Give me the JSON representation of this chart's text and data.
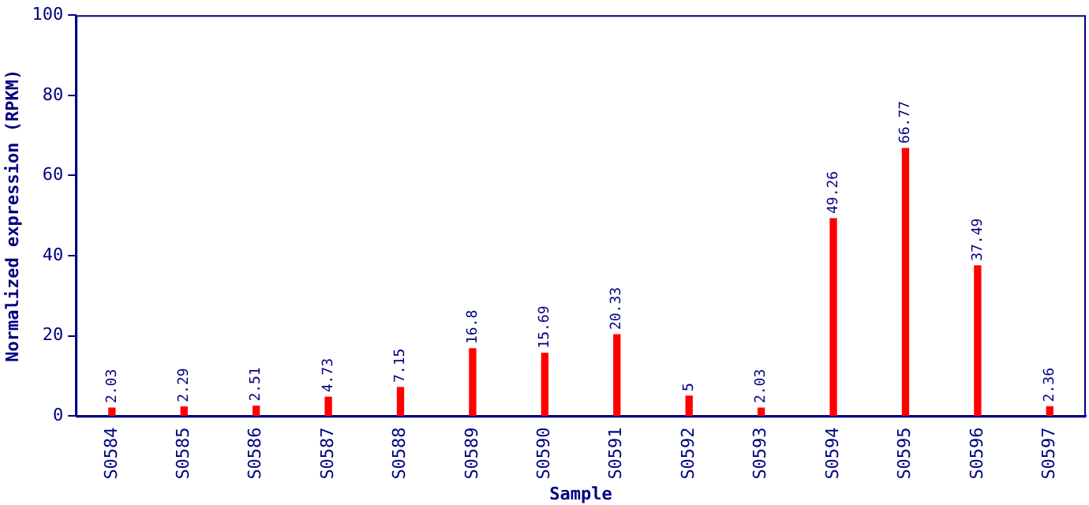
{
  "chart_data": {
    "type": "bar",
    "xlabel": "Sample",
    "ylabel": "Normalized expression (RPKM)",
    "categories": [
      "S0584",
      "S0585",
      "S0586",
      "S0587",
      "S0588",
      "S0589",
      "S0590",
      "S0591",
      "S0592",
      "S0593",
      "S0594",
      "S0595",
      "S0596",
      "S0597"
    ],
    "values": [
      2.03,
      2.29,
      2.51,
      4.73,
      7.15,
      16.8,
      15.69,
      20.33,
      5,
      2.03,
      49.26,
      66.77,
      37.49,
      2.36
    ],
    "color": "#ff0000",
    "ylim": [
      0,
      100
    ],
    "yticks": [
      0,
      20,
      40,
      60,
      80,
      100
    ],
    "grid": false,
    "legend": false,
    "data_labels": true
  }
}
